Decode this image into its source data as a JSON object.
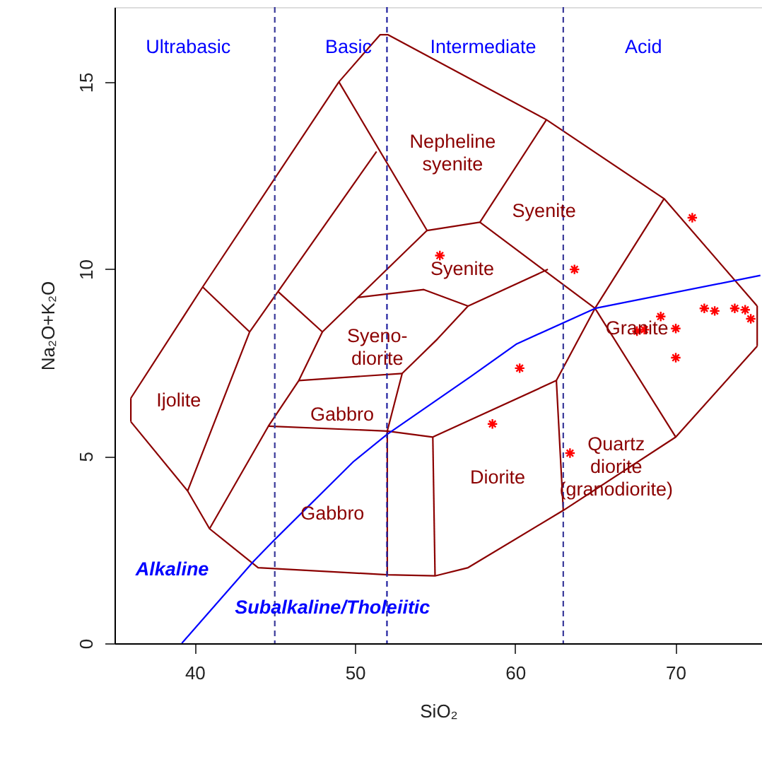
{
  "chart_data": {
    "type": "line",
    "xlabel": "SiO₂",
    "ylabel": "Na₂O+K₂O",
    "xlim": [
      35,
      75.4
    ],
    "ylim": [
      0,
      17
    ],
    "xticks": [
      40,
      50,
      60,
      70
    ],
    "yticks": [
      0,
      5,
      10,
      15
    ],
    "grid": false,
    "line_style": "solid",
    "series": [
      {
        "color": "#8b0000",
        "x": [
          36.02,
          40.5,
          49.0,
          51.57,
          52.07,
          61.95,
          69.29,
          75.1
        ],
        "values": [
          6.55,
          9.52,
          15.0,
          16.26,
          16.26,
          13.99,
          11.88,
          9.01
        ]
      },
      {
        "color": "#8b0000",
        "x": [
          75.1,
          75.1
        ],
        "values": [
          9.01,
          7.94
        ]
      },
      {
        "color": "#8b0000",
        "x": [
          36.02,
          39.56,
          40.93,
          43.96,
          52.02,
          55.0,
          57.06,
          63.0,
          70.02,
          75.1
        ],
        "values": [
          5.92,
          4.07,
          3.06,
          2.02,
          1.83,
          1.8,
          2.02,
          3.55,
          5.51,
          7.94
        ]
      },
      {
        "color": "#8b0000",
        "x": [
          36.02,
          36.02
        ],
        "values": [
          5.92,
          6.55
        ]
      },
      {
        "color": "#8b0000",
        "x": [
          40.5,
          43.43
        ],
        "values": [
          9.52,
          8.32
        ]
      },
      {
        "color": "#8b0000",
        "x": [
          39.56,
          43.43,
          51.35
        ],
        "values": [
          4.07,
          8.32,
          13.14
        ]
      },
      {
        "color": "#8b0000",
        "x": [
          49.0,
          54.5,
          57.8,
          61.95
        ],
        "values": [
          15.0,
          11.03,
          11.25,
          13.99
        ]
      },
      {
        "color": "#8b0000",
        "x": [
          45.22,
          47.97,
          54.5
        ],
        "values": [
          9.39,
          8.32,
          11.03
        ]
      },
      {
        "color": "#8b0000",
        "x": [
          40.93,
          44.6,
          46.5,
          47.97
        ],
        "values": [
          3.06,
          5.8,
          7.02,
          8.32
        ]
      },
      {
        "color": "#8b0000",
        "x": [
          50.17,
          54.3,
          57.06,
          62.04
        ],
        "values": [
          9.24,
          9.45,
          9.01,
          9.99
        ]
      },
      {
        "color": "#8b0000",
        "x": [
          57.8,
          64.98,
          70.02
        ],
        "values": [
          11.25,
          8.95,
          5.51
        ]
      },
      {
        "color": "#8b0000",
        "x": [
          52.02,
          52.02,
          52.95,
          55.15,
          57.06
        ],
        "values": [
          1.83,
          5.67,
          7.21,
          8.13,
          9.01
        ]
      },
      {
        "color": "#8b0000",
        "x": [
          46.5,
          52.95
        ],
        "values": [
          7.02,
          7.21
        ]
      },
      {
        "color": "#8b0000",
        "x": [
          44.6,
          52.02,
          54.86
        ],
        "values": [
          5.8,
          5.67,
          5.51
        ]
      },
      {
        "color": "#8b0000",
        "x": [
          54.86,
          55.0
        ],
        "values": [
          5.51,
          1.8
        ]
      },
      {
        "color": "#8b0000",
        "x": [
          54.86,
          62.57,
          63.0
        ],
        "values": [
          5.51,
          7.02,
          3.55
        ]
      },
      {
        "color": "#8b0000",
        "x": [
          62.57,
          64.98,
          69.29
        ],
        "values": [
          7.02,
          8.95,
          11.88
        ]
      },
      {
        "color": "#0000ff",
        "x": [
          39.2,
          43.7,
          45.0,
          49.9,
          52.0,
          57.2,
          60.1,
          65.0,
          75.3
        ],
        "values": [
          0,
          2.2,
          2.77,
          4.85,
          5.58,
          7.12,
          8.0,
          8.95,
          9.83
        ]
      },
      {
        "type": "scatter",
        "marker": "cross",
        "color": "#ff0000",
        "x": [
          55.3,
          63.7,
          71.05,
          60.28,
          58.58,
          63.42,
          70.02,
          67.6,
          68.06,
          69.08,
          70.02,
          71.8,
          72.45,
          73.7,
          74.35,
          74.7
        ],
        "values": [
          10.36,
          9.99,
          11.37,
          7.35,
          5.86,
          5.08,
          7.63,
          8.34,
          8.38,
          8.73,
          8.41,
          8.95,
          8.88,
          8.95,
          8.91,
          8.67
        ]
      }
    ],
    "ref_lines": [
      {
        "axis": "x",
        "value": 45,
        "color": "#3a3a9a",
        "line_style": "dashed"
      },
      {
        "axis": "x",
        "value": 52,
        "color": "#2020a0",
        "line_style": "dashed"
      },
      {
        "axis": "x",
        "value": 63,
        "color": "#3a3a9a",
        "line_style": "dashed"
      }
    ],
    "annotations": [
      "Ultrabasic",
      "Basic",
      "Intermediate",
      "Acid",
      "Nepheline\nsyenite",
      "Syenite",
      "Syenite",
      "Syeno-\ndiorite",
      "Ijolite",
      "Gabbro",
      "Gabbro",
      "Diorite",
      "Quartz\ndiorite\n(granodiorite)",
      "Granite",
      "Alkaline",
      "Subalkaline/Tholeiitic"
    ]
  }
}
